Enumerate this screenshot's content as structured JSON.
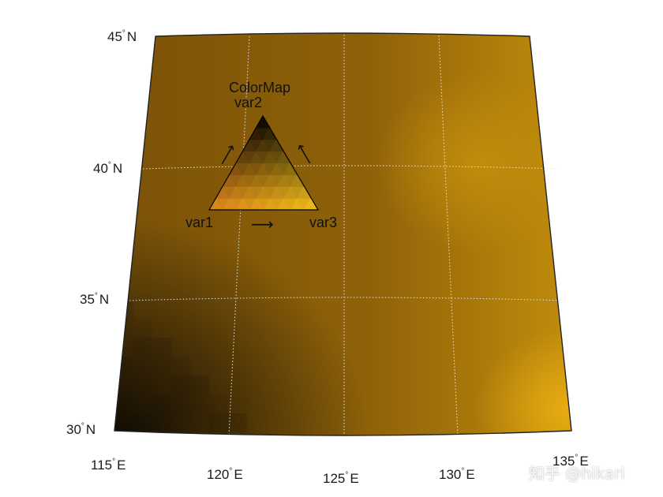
{
  "map": {
    "colors": {
      "land_light": "#c48f0c",
      "land_mid": "#7a5208",
      "land_dark": "#0d0904",
      "frame": "#222222",
      "grid": "#e6e6e6"
    },
    "lat_labels": [
      {
        "value": "45",
        "suffix": "N"
      },
      {
        "value": "40",
        "suffix": "N"
      },
      {
        "value": "35",
        "suffix": "N"
      },
      {
        "value": "30",
        "suffix": "N"
      }
    ],
    "lon_labels": [
      {
        "value": "115",
        "suffix": "E"
      },
      {
        "value": "120",
        "suffix": "E"
      },
      {
        "value": "125",
        "suffix": "E"
      },
      {
        "value": "130",
        "suffix": "E"
      },
      {
        "value": "135",
        "suffix": "E"
      }
    ]
  },
  "legend": {
    "title": "ColorMap",
    "var_top": "var2",
    "var_left": "var1",
    "var_right": "var3",
    "corner_colors": {
      "top": "#000000",
      "left": "#e08a1a",
      "right": "#f5c21a"
    }
  },
  "watermark": "知乎 @hikari"
}
